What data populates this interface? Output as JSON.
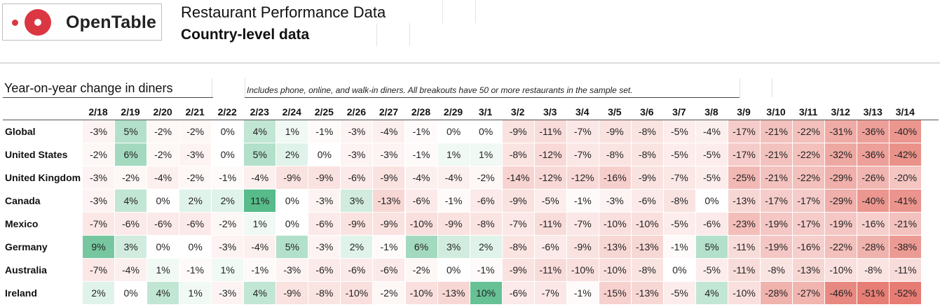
{
  "brand": {
    "name": "OpenTable"
  },
  "header": {
    "title": "Restaurant Performance Data",
    "subtitle": "Country-level data"
  },
  "section": {
    "title": "Year-on-year change in diners",
    "note": "Includes phone, online, and walk-in diners. All breakouts have 50 or more restaurants in the sample set."
  },
  "colors": {
    "positive": "#57bb8a",
    "negative": "#e67c73",
    "neutral": "#ffffff"
  },
  "table": {
    "columns": [
      "2/18",
      "2/19",
      "2/20",
      "2/21",
      "2/22",
      "2/23",
      "2/24",
      "2/25",
      "2/26",
      "2/27",
      "2/28",
      "2/29",
      "3/1",
      "3/2",
      "3/3",
      "3/4",
      "3/5",
      "3/6",
      "3/7",
      "3/8",
      "3/9",
      "3/10",
      "3/11",
      "3/12",
      "3/13",
      "3/14"
    ],
    "rows": [
      {
        "country": "Global",
        "values": [
          -3,
          5,
          -2,
          -2,
          0,
          4,
          1,
          -1,
          -3,
          -4,
          -1,
          0,
          0,
          -9,
          -11,
          -7,
          -9,
          -8,
          -5,
          -4,
          -17,
          -21,
          -22,
          -31,
          -36,
          -40
        ]
      },
      {
        "country": "United States",
        "values": [
          -2,
          6,
          -2,
          -3,
          0,
          5,
          2,
          0,
          -3,
          -3,
          -1,
          1,
          1,
          -8,
          -12,
          -7,
          -8,
          -8,
          -5,
          -5,
          -17,
          -21,
          -22,
          -32,
          -36,
          -42
        ]
      },
      {
        "country": "United Kingdom",
        "values": [
          -3,
          -2,
          -4,
          -2,
          -1,
          -4,
          -9,
          -9,
          -6,
          -9,
          -4,
          -4,
          -2,
          -14,
          -12,
          -12,
          -16,
          -9,
          -7,
          -5,
          -25,
          -21,
          -22,
          -29,
          -26,
          -20
        ]
      },
      {
        "country": "Canada",
        "values": [
          -3,
          4,
          0,
          2,
          2,
          11,
          0,
          -3,
          3,
          -13,
          -6,
          -1,
          -6,
          -9,
          -5,
          -1,
          -3,
          -6,
          -8,
          0,
          -13,
          -17,
          -17,
          -29,
          -40,
          -41
        ]
      },
      {
        "country": "Mexico",
        "values": [
          -7,
          -6,
          -6,
          -6,
          -2,
          1,
          0,
          -6,
          -9,
          -9,
          -10,
          -9,
          -8,
          -7,
          -11,
          -7,
          -10,
          -10,
          -5,
          -6,
          -23,
          -19,
          -17,
          -19,
          -16,
          -21
        ]
      },
      {
        "country": "Germany",
        "values": [
          9,
          3,
          0,
          0,
          -3,
          -4,
          5,
          -3,
          2,
          -1,
          6,
          3,
          2,
          -8,
          -6,
          -9,
          -13,
          -13,
          -1,
          5,
          -11,
          -19,
          -16,
          -22,
          -28,
          -38
        ]
      },
      {
        "country": "Australia",
        "values": [
          -7,
          -4,
          1,
          -1,
          1,
          -1,
          -3,
          -6,
          -6,
          -6,
          -2,
          0,
          -1,
          -9,
          -11,
          -10,
          -10,
          -8,
          0,
          -5,
          -11,
          -8,
          -13,
          -10,
          -8,
          -11
        ]
      },
      {
        "country": "Ireland",
        "values": [
          2,
          0,
          4,
          1,
          -3,
          4,
          -9,
          -8,
          -10,
          -2,
          -10,
          -13,
          10,
          -6,
          -7,
          -1,
          -15,
          -13,
          -5,
          4,
          -10,
          -28,
          -27,
          -46,
          -51,
          -52
        ]
      }
    ]
  }
}
